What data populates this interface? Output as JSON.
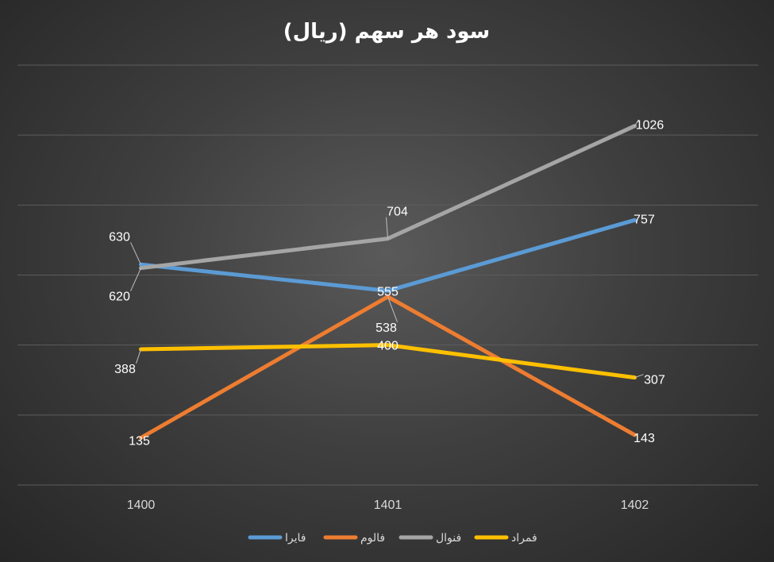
{
  "chart_data": {
    "type": "line",
    "title": "سود هر سهم (ریال)",
    "categories": [
      "1400",
      "1401",
      "1402"
    ],
    "ylim": [
      0,
      1200
    ],
    "grid": true,
    "legend_position": "bottom",
    "series": [
      {
        "name": "فایرا",
        "color": "#5b9bd5",
        "values": [
          630,
          555,
          757
        ]
      },
      {
        "name": "فالوم",
        "color": "#ed7d31",
        "values": [
          135,
          538,
          143
        ]
      },
      {
        "name": "فنوال",
        "color": "#a5a5a5",
        "values": [
          620,
          704,
          1026
        ]
      },
      {
        "name": "فمراد",
        "color": "#ffc000",
        "values": [
          388,
          400,
          307
        ]
      }
    ]
  }
}
